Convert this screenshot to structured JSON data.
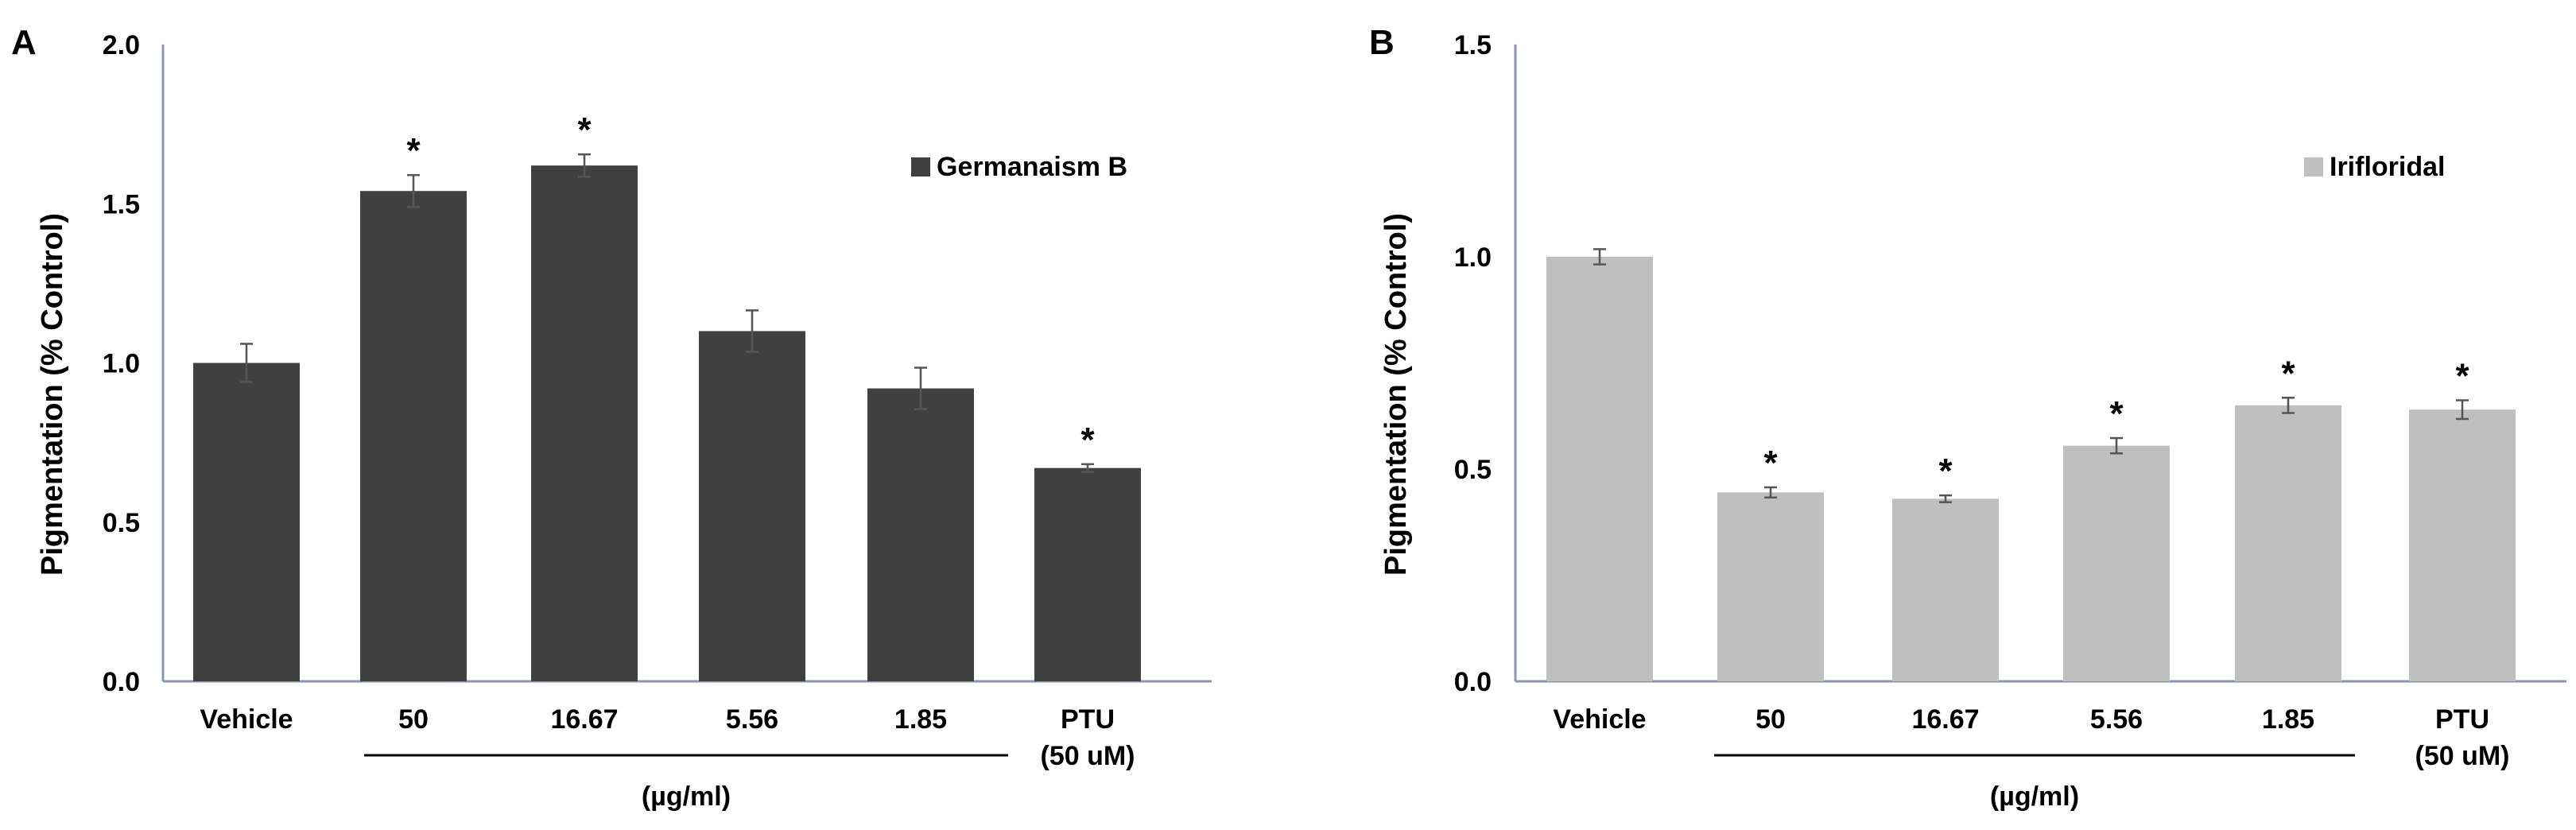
{
  "chart_data": [
    {
      "type": "bar",
      "panel": "A",
      "ylabel": "Pigmentation (% Control)",
      "xlabel": "",
      "ylim": [
        0,
        2.0
      ],
      "yticks": [
        "0.0",
        "0.5",
        "1.0",
        "1.5",
        "2.0"
      ],
      "categories": [
        "Vehicle",
        "50",
        "16.67",
        "5.56",
        "1.85",
        "PTU"
      ],
      "category_sublabels": [
        "",
        "",
        "",
        "",
        "",
        "(50 uM)"
      ],
      "group_label": "(µg/ml)",
      "series": [
        {
          "name": "Germanaism B",
          "color": "#404040",
          "values": [
            1.0,
            1.54,
            1.62,
            1.1,
            0.92,
            0.67
          ],
          "errors": [
            0.06,
            0.05,
            0.035,
            0.065,
            0.065,
            0.012
          ],
          "significant": [
            "",
            "*",
            "*",
            "",
            "",
            "*"
          ]
        }
      ]
    },
    {
      "type": "bar",
      "panel": "B",
      "ylabel": "Pigmentation (% Control)",
      "xlabel": "",
      "ylim": [
        0,
        1.5
      ],
      "yticks": [
        "0.0",
        "0.5",
        "1.0",
        "1.5"
      ],
      "categories": [
        "Vehicle",
        "50",
        "16.67",
        "5.56",
        "1.85",
        "PTU"
      ],
      "category_sublabels": [
        "",
        "",
        "",
        "",
        "",
        "(50 uM)"
      ],
      "group_label": "(µg/ml)",
      "series": [
        {
          "name": "Irifloridal",
          "color": "#bfbfbf",
          "values": [
            1.0,
            0.445,
            0.43,
            0.555,
            0.65,
            0.64
          ],
          "errors": [
            0.018,
            0.012,
            0.008,
            0.018,
            0.018,
            0.022
          ],
          "significant": [
            "",
            "*",
            "*",
            "*",
            "*",
            "*"
          ]
        }
      ]
    }
  ]
}
